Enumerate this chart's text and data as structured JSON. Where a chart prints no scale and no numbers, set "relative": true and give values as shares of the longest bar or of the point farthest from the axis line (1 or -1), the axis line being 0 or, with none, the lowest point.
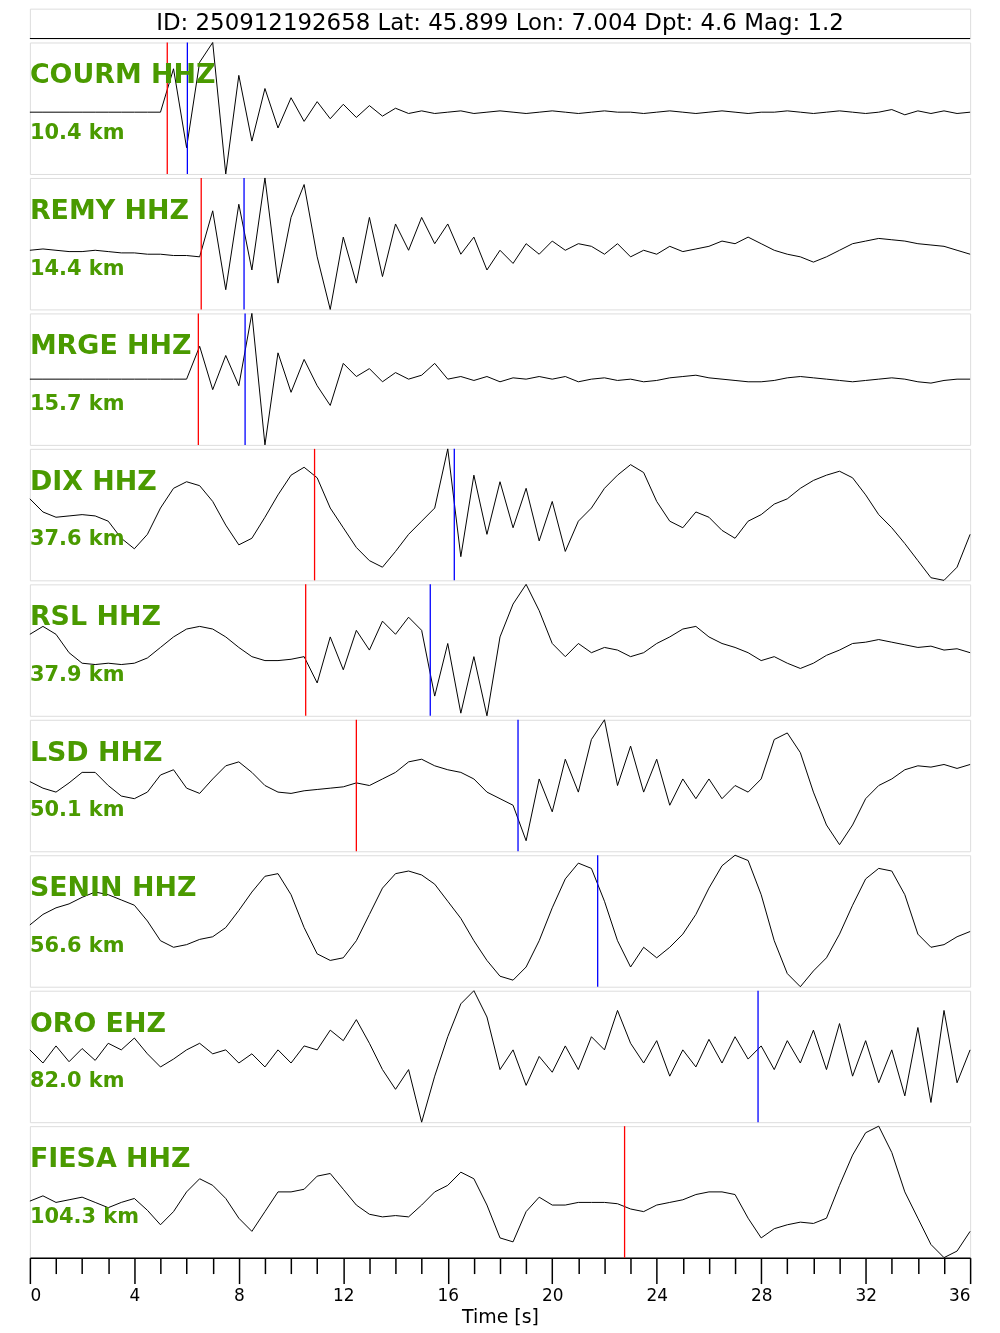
{
  "chart_data": [
    {
      "type": "other",
      "title": "ID: 250912192658 Lat:  45.899 Lon:   7.004 Dpt:     4.6 Mag:   1.2"
    },
    {
      "type": "line",
      "title": "COURM HHZ",
      "annotations": [
        "10.4 km"
      ],
      "relative": true,
      "tick_labels": false,
      "xlim": [
        0,
        36
      ],
      "x": [
        0,
        0.5,
        1,
        1.5,
        2,
        2.5,
        3,
        3.5,
        4,
        4.5,
        5,
        5.5,
        6,
        6.5,
        7,
        7.5,
        8,
        8.5,
        9,
        9.5,
        10,
        10.5,
        11,
        11.5,
        12,
        12.5,
        13,
        13.5,
        14,
        14.5,
        15,
        15.5,
        16,
        16.5,
        17,
        17.5,
        18,
        18.5,
        19,
        19.5,
        20,
        20.5,
        21,
        21.5,
        22,
        22.5,
        23,
        23.5,
        24,
        24.5,
        25,
        25.5,
        26,
        26.5,
        27,
        27.5,
        28,
        28.5,
        29,
        29.5,
        30,
        30.5,
        31,
        31.5,
        32,
        32.5,
        33,
        33.5,
        34,
        34.5,
        35,
        35.5,
        36
      ],
      "series": [
        {
          "color": "#000000",
          "values": [
            0.47,
            0.47,
            0.47,
            0.47,
            0.47,
            0.47,
            0.47,
            0.47,
            0.47,
            0.47,
            0.47,
            0.8,
            0.2,
            0.85,
            1.0,
            0.0,
            0.75,
            0.25,
            0.65,
            0.35,
            0.58,
            0.4,
            0.55,
            0.42,
            0.53,
            0.43,
            0.52,
            0.44,
            0.5,
            0.46,
            0.48,
            0.46,
            0.47,
            0.48,
            0.46,
            0.47,
            0.48,
            0.47,
            0.46,
            0.47,
            0.48,
            0.47,
            0.46,
            0.47,
            0.48,
            0.47,
            0.47,
            0.46,
            0.47,
            0.48,
            0.47,
            0.46,
            0.47,
            0.48,
            0.47,
            0.46,
            0.47,
            0.47,
            0.48,
            0.47,
            0.46,
            0.47,
            0.48,
            0.47,
            0.46,
            0.47,
            0.49,
            0.45,
            0.48,
            0.46,
            0.48,
            0.46,
            0.47
          ]
        }
      ],
      "ref_lines": [
        {
          "axis": "x",
          "value": 5.26,
          "color": "#ff0000"
        },
        {
          "axis": "x",
          "value": 6.03,
          "color": "#0000ff"
        }
      ]
    },
    {
      "type": "line",
      "title": "REMY HHZ",
      "annotations": [
        "14.4 km"
      ],
      "relative": true,
      "tick_labels": false,
      "xlim": [
        0,
        36
      ],
      "x": [
        0,
        0.5,
        1,
        1.5,
        2,
        2.5,
        3,
        3.5,
        4,
        4.5,
        5,
        5.5,
        6,
        6.5,
        7,
        7.5,
        8,
        8.5,
        9,
        9.5,
        10,
        10.5,
        11,
        11.5,
        12,
        12.5,
        13,
        13.5,
        14,
        14.5,
        15,
        15.5,
        16,
        16.5,
        17,
        17.5,
        18,
        18.5,
        19,
        19.5,
        20,
        20.5,
        21,
        21.5,
        22,
        22.5,
        23,
        23.5,
        24,
        24.5,
        25,
        25.5,
        26,
        26.5,
        27,
        27.5,
        28,
        28.5,
        29,
        29.5,
        30,
        30.5,
        31,
        31.5,
        32,
        32.5,
        33,
        33.5,
        34,
        34.5,
        35,
        35.5,
        36
      ],
      "series": [
        {
          "color": "#000000",
          "values": [
            0.45,
            0.46,
            0.45,
            0.44,
            0.44,
            0.45,
            0.44,
            0.43,
            0.43,
            0.42,
            0.42,
            0.41,
            0.41,
            0.4,
            0.75,
            0.15,
            0.8,
            0.3,
            1.0,
            0.2,
            0.7,
            0.95,
            0.4,
            0.0,
            0.55,
            0.2,
            0.7,
            0.25,
            0.65,
            0.45,
            0.7,
            0.5,
            0.65,
            0.42,
            0.55,
            0.3,
            0.45,
            0.35,
            0.5,
            0.42,
            0.52,
            0.45,
            0.5,
            0.48,
            0.42,
            0.5,
            0.4,
            0.45,
            0.42,
            0.48,
            0.44,
            0.46,
            0.48,
            0.52,
            0.5,
            0.55,
            0.5,
            0.45,
            0.42,
            0.4,
            0.36,
            0.4,
            0.45,
            0.5,
            0.52,
            0.54,
            0.53,
            0.52,
            0.5,
            0.49,
            0.48,
            0.45,
            0.42
          ]
        }
      ],
      "ref_lines": [
        {
          "axis": "x",
          "value": 6.56,
          "color": "#ff0000"
        },
        {
          "axis": "x",
          "value": 8.2,
          "color": "#0000ff"
        }
      ]
    },
    {
      "type": "line",
      "title": "MRGE HHZ",
      "annotations": [
        "15.7 km"
      ],
      "relative": true,
      "tick_labels": false,
      "xlim": [
        0,
        36
      ],
      "x": [
        0,
        0.5,
        1,
        1.5,
        2,
        2.5,
        3,
        3.5,
        4,
        4.5,
        5,
        5.5,
        6,
        6.5,
        7,
        7.5,
        8,
        8.5,
        9,
        9.5,
        10,
        10.5,
        11,
        11.5,
        12,
        12.5,
        13,
        13.5,
        14,
        14.5,
        15,
        15.5,
        16,
        16.5,
        17,
        17.5,
        18,
        18.5,
        19,
        19.5,
        20,
        20.5,
        21,
        21.5,
        22,
        22.5,
        23,
        23.5,
        24,
        24.5,
        25,
        25.5,
        26,
        26.5,
        27,
        27.5,
        28,
        28.5,
        29,
        29.5,
        30,
        30.5,
        31,
        31.5,
        32,
        32.5,
        33,
        33.5,
        34,
        34.5,
        35,
        35.5,
        36
      ],
      "series": [
        {
          "color": "#000000",
          "values": [
            0.5,
            0.5,
            0.5,
            0.5,
            0.5,
            0.5,
            0.5,
            0.5,
            0.5,
            0.5,
            0.5,
            0.5,
            0.5,
            0.75,
            0.42,
            0.68,
            0.45,
            1.0,
            0.0,
            0.7,
            0.4,
            0.65,
            0.45,
            0.3,
            0.62,
            0.52,
            0.58,
            0.48,
            0.55,
            0.5,
            0.53,
            0.62,
            0.5,
            0.52,
            0.49,
            0.52,
            0.48,
            0.51,
            0.5,
            0.52,
            0.5,
            0.52,
            0.48,
            0.5,
            0.51,
            0.49,
            0.5,
            0.48,
            0.49,
            0.51,
            0.52,
            0.53,
            0.51,
            0.5,
            0.49,
            0.48,
            0.48,
            0.49,
            0.51,
            0.52,
            0.51,
            0.5,
            0.49,
            0.48,
            0.49,
            0.5,
            0.51,
            0.5,
            0.48,
            0.47,
            0.49,
            0.5,
            0.5
          ]
        }
      ],
      "ref_lines": [
        {
          "axis": "x",
          "value": 6.45,
          "color": "#ff0000"
        },
        {
          "axis": "x",
          "value": 8.24,
          "color": "#0000ff"
        }
      ]
    },
    {
      "type": "line",
      "title": "DIX HHZ",
      "annotations": [
        "37.6 km"
      ],
      "relative": true,
      "tick_labels": false,
      "xlim": [
        0,
        36
      ],
      "x": [
        0,
        0.5,
        1,
        1.5,
        2,
        2.5,
        3,
        3.5,
        4,
        4.5,
        5,
        5.5,
        6,
        6.5,
        7,
        7.5,
        8,
        8.5,
        9,
        9.5,
        10,
        10.5,
        11,
        11.5,
        12,
        12.5,
        13,
        13.5,
        14,
        14.5,
        15,
        15.5,
        16,
        16.5,
        17,
        17.5,
        18,
        18.5,
        19,
        19.5,
        20,
        20.5,
        21,
        21.5,
        22,
        22.5,
        23,
        23.5,
        24,
        24.5,
        25,
        25.5,
        26,
        26.5,
        27,
        27.5,
        28,
        28.5,
        29,
        29.5,
        30,
        30.5,
        31,
        31.5,
        32,
        32.5,
        33,
        33.5,
        34,
        34.5,
        35,
        35.5,
        36
      ],
      "series": [
        {
          "color": "#000000",
          "values": [
            0.62,
            0.52,
            0.48,
            0.49,
            0.5,
            0.49,
            0.45,
            0.32,
            0.24,
            0.35,
            0.55,
            0.7,
            0.75,
            0.72,
            0.6,
            0.42,
            0.27,
            0.32,
            0.48,
            0.65,
            0.8,
            0.86,
            0.78,
            0.55,
            0.4,
            0.25,
            0.15,
            0.1,
            0.22,
            0.35,
            0.45,
            0.55,
            1.0,
            0.18,
            0.8,
            0.35,
            0.75,
            0.4,
            0.7,
            0.3,
            0.6,
            0.22,
            0.45,
            0.55,
            0.7,
            0.8,
            0.88,
            0.82,
            0.6,
            0.45,
            0.4,
            0.52,
            0.48,
            0.38,
            0.32,
            0.45,
            0.5,
            0.58,
            0.62,
            0.7,
            0.76,
            0.8,
            0.83,
            0.78,
            0.65,
            0.5,
            0.4,
            0.28,
            0.15,
            0.02,
            0.0,
            0.1,
            0.35
          ]
        }
      ],
      "ref_lines": [
        {
          "axis": "x",
          "value": 10.9,
          "color": "#ff0000"
        },
        {
          "axis": "x",
          "value": 16.25,
          "color": "#0000ff"
        }
      ]
    },
    {
      "type": "line",
      "title": "RSL HHZ",
      "annotations": [
        "37.9 km"
      ],
      "relative": true,
      "tick_labels": false,
      "xlim": [
        0,
        36
      ],
      "x": [
        0,
        0.5,
        1,
        1.5,
        2,
        2.5,
        3,
        3.5,
        4,
        4.5,
        5,
        5.5,
        6,
        6.5,
        7,
        7.5,
        8,
        8.5,
        9,
        9.5,
        10,
        10.5,
        11,
        11.5,
        12,
        12.5,
        13,
        13.5,
        14,
        14.5,
        15,
        15.5,
        16,
        16.5,
        17,
        17.5,
        18,
        18.5,
        19,
        19.5,
        20,
        20.5,
        21,
        21.5,
        22,
        22.5,
        23,
        23.5,
        24,
        24.5,
        25,
        25.5,
        26,
        26.5,
        27,
        27.5,
        28,
        28.5,
        29,
        29.5,
        30,
        30.5,
        31,
        31.5,
        32,
        32.5,
        33,
        33.5,
        34,
        34.5,
        35,
        35.5,
        36
      ],
      "series": [
        {
          "color": "#000000",
          "values": [
            0.62,
            0.68,
            0.62,
            0.48,
            0.4,
            0.39,
            0.4,
            0.39,
            0.4,
            0.44,
            0.52,
            0.6,
            0.66,
            0.68,
            0.66,
            0.6,
            0.52,
            0.45,
            0.42,
            0.42,
            0.43,
            0.45,
            0.25,
            0.6,
            0.35,
            0.65,
            0.5,
            0.72,
            0.62,
            0.75,
            0.65,
            0.15,
            0.55,
            0.02,
            0.45,
            0.0,
            0.6,
            0.85,
            1.0,
            0.8,
            0.55,
            0.45,
            0.55,
            0.48,
            0.52,
            0.5,
            0.45,
            0.48,
            0.55,
            0.6,
            0.66,
            0.68,
            0.6,
            0.55,
            0.52,
            0.48,
            0.42,
            0.45,
            0.4,
            0.36,
            0.4,
            0.46,
            0.5,
            0.55,
            0.56,
            0.58,
            0.56,
            0.54,
            0.52,
            0.53,
            0.5,
            0.51,
            0.48
          ]
        }
      ],
      "ref_lines": [
        {
          "axis": "x",
          "value": 10.56,
          "color": "#ff0000"
        },
        {
          "axis": "x",
          "value": 15.33,
          "color": "#0000ff"
        }
      ]
    },
    {
      "type": "line",
      "title": "LSD HHZ",
      "annotations": [
        "50.1 km"
      ],
      "relative": true,
      "tick_labels": false,
      "xlim": [
        0,
        36
      ],
      "x": [
        0,
        0.5,
        1,
        1.5,
        2,
        2.5,
        3,
        3.5,
        4,
        4.5,
        5,
        5.5,
        6,
        6.5,
        7,
        7.5,
        8,
        8.5,
        9,
        9.5,
        10,
        10.5,
        11,
        11.5,
        12,
        12.5,
        13,
        13.5,
        14,
        14.5,
        15,
        15.5,
        16,
        16.5,
        17,
        17.5,
        18,
        18.5,
        19,
        19.5,
        20,
        20.5,
        21,
        21.5,
        22,
        22.5,
        23,
        23.5,
        24,
        24.5,
        25,
        25.5,
        26,
        26.5,
        27,
        27.5,
        28,
        28.5,
        29,
        29.5,
        30,
        30.5,
        31,
        31.5,
        32,
        32.5,
        33,
        33.5,
        34,
        34.5,
        35,
        35.5,
        36
      ],
      "series": [
        {
          "color": "#000000",
          "values": [
            0.53,
            0.48,
            0.45,
            0.52,
            0.6,
            0.6,
            0.5,
            0.42,
            0.4,
            0.45,
            0.58,
            0.62,
            0.48,
            0.44,
            0.55,
            0.65,
            0.68,
            0.6,
            0.5,
            0.45,
            0.44,
            0.46,
            0.47,
            0.48,
            0.49,
            0.52,
            0.5,
            0.55,
            0.6,
            0.68,
            0.7,
            0.65,
            0.62,
            0.6,
            0.55,
            0.45,
            0.4,
            0.35,
            0.08,
            0.55,
            0.3,
            0.7,
            0.45,
            0.85,
            1.0,
            0.5,
            0.8,
            0.45,
            0.7,
            0.35,
            0.55,
            0.4,
            0.55,
            0.4,
            0.5,
            0.45,
            0.55,
            0.85,
            0.9,
            0.75,
            0.45,
            0.2,
            0.05,
            0.2,
            0.4,
            0.5,
            0.55,
            0.62,
            0.65,
            0.64,
            0.66,
            0.63,
            0.66
          ]
        }
      ],
      "ref_lines": [
        {
          "axis": "x",
          "value": 12.5,
          "color": "#ff0000"
        },
        {
          "axis": "x",
          "value": 18.69,
          "color": "#0000ff"
        }
      ]
    },
    {
      "type": "line",
      "title": "SENIN HHZ",
      "annotations": [
        "56.6 km"
      ],
      "relative": true,
      "tick_labels": false,
      "xlim": [
        0,
        36
      ],
      "x": [
        0,
        0.5,
        1,
        1.5,
        2,
        2.5,
        3,
        3.5,
        4,
        4.5,
        5,
        5.5,
        6,
        6.5,
        7,
        7.5,
        8,
        8.5,
        9,
        9.5,
        10,
        10.5,
        11,
        11.5,
        12,
        12.5,
        13,
        13.5,
        14,
        14.5,
        15,
        15.5,
        16,
        16.5,
        17,
        17.5,
        18,
        18.5,
        19,
        19.5,
        20,
        20.5,
        21,
        21.5,
        22,
        22.5,
        23,
        23.5,
        24,
        24.5,
        25,
        25.5,
        26,
        26.5,
        27,
        27.5,
        28,
        28.5,
        29,
        29.5,
        30,
        30.5,
        31,
        31.5,
        32,
        32.5,
        33,
        33.5,
        34,
        34.5,
        35,
        35.5,
        36
      ],
      "series": [
        {
          "color": "#000000",
          "values": [
            0.47,
            0.55,
            0.6,
            0.63,
            0.68,
            0.72,
            0.7,
            0.66,
            0.62,
            0.5,
            0.35,
            0.3,
            0.32,
            0.36,
            0.38,
            0.45,
            0.58,
            0.72,
            0.84,
            0.86,
            0.7,
            0.45,
            0.25,
            0.2,
            0.22,
            0.35,
            0.55,
            0.75,
            0.86,
            0.88,
            0.85,
            0.78,
            0.65,
            0.52,
            0.35,
            0.2,
            0.08,
            0.05,
            0.15,
            0.35,
            0.6,
            0.82,
            0.94,
            0.9,
            0.65,
            0.35,
            0.15,
            0.3,
            0.22,
            0.3,
            0.4,
            0.55,
            0.75,
            0.92,
            1.0,
            0.96,
            0.7,
            0.35,
            0.1,
            0.0,
            0.12,
            0.22,
            0.4,
            0.62,
            0.82,
            0.9,
            0.88,
            0.7,
            0.4,
            0.3,
            0.32,
            0.38,
            0.42
          ]
        }
      ],
      "ref_lines": [
        {
          "axis": "x",
          "value": 21.74,
          "color": "#0000ff"
        }
      ]
    },
    {
      "type": "line",
      "title": "ORO EHZ",
      "annotations": [
        "82.0 km"
      ],
      "relative": true,
      "tick_labels": false,
      "xlim": [
        0,
        36
      ],
      "x": [
        0,
        0.5,
        1,
        1.5,
        2,
        2.5,
        3,
        3.5,
        4,
        4.5,
        5,
        5.5,
        6,
        6.5,
        7,
        7.5,
        8,
        8.5,
        9,
        9.5,
        10,
        10.5,
        11,
        11.5,
        12,
        12.5,
        13,
        13.5,
        14,
        14.5,
        15,
        15.5,
        16,
        16.5,
        17,
        17.5,
        18,
        18.5,
        19,
        19.5,
        20,
        20.5,
        21,
        21.5,
        22,
        22.5,
        23,
        23.5,
        24,
        24.5,
        25,
        25.5,
        26,
        26.5,
        27,
        27.5,
        28,
        28.5,
        29,
        29.5,
        30,
        30.5,
        31,
        31.5,
        32,
        32.5,
        33,
        33.5,
        34,
        34.5,
        35,
        35.5,
        36
      ],
      "series": [
        {
          "color": "#000000",
          "values": [
            0.55,
            0.45,
            0.58,
            0.46,
            0.56,
            0.47,
            0.6,
            0.55,
            0.64,
            0.52,
            0.42,
            0.48,
            0.55,
            0.6,
            0.52,
            0.55,
            0.45,
            0.52,
            0.42,
            0.55,
            0.45,
            0.58,
            0.55,
            0.7,
            0.62,
            0.78,
            0.6,
            0.4,
            0.25,
            0.4,
            0.0,
            0.35,
            0.65,
            0.9,
            1.0,
            0.8,
            0.4,
            0.55,
            0.28,
            0.5,
            0.38,
            0.58,
            0.4,
            0.65,
            0.55,
            0.85,
            0.6,
            0.45,
            0.62,
            0.35,
            0.55,
            0.42,
            0.63,
            0.45,
            0.65,
            0.48,
            0.58,
            0.4,
            0.62,
            0.45,
            0.7,
            0.4,
            0.75,
            0.35,
            0.62,
            0.3,
            0.55,
            0.2,
            0.72,
            0.15,
            0.85,
            0.3,
            0.55
          ]
        }
      ],
      "ref_lines": [
        {
          "axis": "x",
          "value": 27.88,
          "color": "#0000ff"
        }
      ]
    },
    {
      "type": "line",
      "title": "FIESA HHZ",
      "annotations": [
        "104.3 km"
      ],
      "relative": true,
      "tick_labels": "x",
      "xlabel": "Time [s]",
      "xlim": [
        0,
        36
      ],
      "xticks": [
        0,
        {
          "value": 1,
          "label": null
        },
        {
          "value": 2,
          "label": null
        },
        {
          "value": 3,
          "label": null
        },
        4,
        {
          "value": 5,
          "label": null
        },
        {
          "value": 6,
          "label": null
        },
        {
          "value": 7,
          "label": null
        },
        8,
        {
          "value": 9,
          "label": null
        },
        {
          "value": 10,
          "label": null
        },
        {
          "value": 11,
          "label": null
        },
        12,
        {
          "value": 13,
          "label": null
        },
        {
          "value": 14,
          "label": null
        },
        {
          "value": 15,
          "label": null
        },
        16,
        {
          "value": 17,
          "label": null
        },
        {
          "value": 18,
          "label": null
        },
        {
          "value": 19,
          "label": null
        },
        20,
        {
          "value": 21,
          "label": null
        },
        {
          "value": 22,
          "label": null
        },
        {
          "value": 23,
          "label": null
        },
        24,
        {
          "value": 25,
          "label": null
        },
        {
          "value": 26,
          "label": null
        },
        {
          "value": 27,
          "label": null
        },
        28,
        {
          "value": 29,
          "label": null
        },
        {
          "value": 30,
          "label": null
        },
        {
          "value": 31,
          "label": null
        },
        32,
        {
          "value": 33,
          "label": null
        },
        {
          "value": 34,
          "label": null
        },
        {
          "value": 35,
          "label": null
        },
        36
      ],
      "x": [
        0,
        0.5,
        1,
        1.5,
        2,
        2.5,
        3,
        3.5,
        4,
        4.5,
        5,
        5.5,
        6,
        6.5,
        7,
        7.5,
        8,
        8.5,
        9,
        9.5,
        10,
        10.5,
        11,
        11.5,
        12,
        12.5,
        13,
        13.5,
        14,
        14.5,
        15,
        15.5,
        16,
        16.5,
        17,
        17.5,
        18,
        18.5,
        19,
        19.5,
        20,
        20.5,
        21,
        21.5,
        22,
        22.5,
        23,
        23.5,
        24,
        24.5,
        25,
        25.5,
        26,
        26.5,
        27,
        27.5,
        28,
        28.5,
        29,
        29.5,
        30,
        30.5,
        31,
        31.5,
        32,
        32.5,
        33,
        33.5,
        34,
        34.5,
        35,
        35.5,
        36
      ],
      "series": [
        {
          "color": "#000000",
          "values": [
            0.43,
            0.47,
            0.42,
            0.44,
            0.46,
            0.42,
            0.38,
            0.42,
            0.45,
            0.36,
            0.25,
            0.35,
            0.5,
            0.6,
            0.55,
            0.45,
            0.3,
            0.2,
            0.35,
            0.5,
            0.5,
            0.52,
            0.62,
            0.64,
            0.52,
            0.4,
            0.33,
            0.31,
            0.32,
            0.31,
            0.4,
            0.5,
            0.55,
            0.65,
            0.6,
            0.4,
            0.15,
            0.12,
            0.35,
            0.46,
            0.4,
            0.4,
            0.42,
            0.42,
            0.42,
            0.41,
            0.37,
            0.35,
            0.4,
            0.42,
            0.44,
            0.48,
            0.5,
            0.5,
            0.48,
            0.3,
            0.15,
            0.22,
            0.25,
            0.27,
            0.26,
            0.3,
            0.55,
            0.78,
            0.95,
            1.0,
            0.8,
            0.5,
            0.3,
            0.1,
            0.0,
            0.05,
            0.2
          ]
        }
      ],
      "ref_lines": [
        {
          "axis": "x",
          "value": 22.77,
          "color": "#ff0000"
        }
      ]
    }
  ]
}
